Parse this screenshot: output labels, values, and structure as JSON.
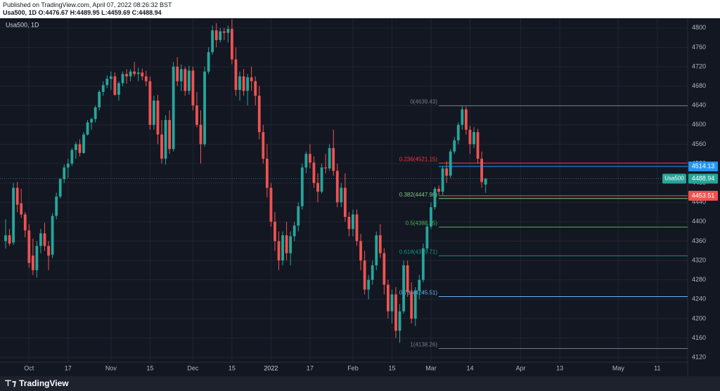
{
  "header": {
    "published": "Published on TradingView.com, April 07, 2022 08:26:32 BST",
    "ohlc": "Usa500, 1D O:4476.67 H:4489.95 L:4459.69 C:4488.94"
  },
  "brand": {
    "logo_icon": "tradingview-logo-icon",
    "name": "TradingView"
  },
  "colors": {
    "background": "#131722",
    "up": "#26a69a",
    "down": "#ef5350",
    "grid": "#1f2533",
    "axis_text": "#b2b5be"
  },
  "chart_data": {
    "type": "candlestick",
    "symbol_label": "Usa500, 1D",
    "y_ticks": [
      4120,
      4160,
      4200,
      4240,
      4280,
      4320,
      4360,
      4400,
      4440,
      4480,
      4520,
      4560,
      4600,
      4640,
      4680,
      4720,
      4760,
      4800
    ],
    "ylim": [
      4110,
      4820
    ],
    "x_ticks": [
      "Oct",
      "17",
      "Nov",
      "15",
      "Dec",
      "15",
      "2022",
      "17",
      "Feb",
      "15",
      "Mar",
      "14",
      "Apr",
      "13",
      "May",
      "11"
    ],
    "x_tick_bar_index": [
      6,
      16,
      27,
      37,
      48,
      58,
      68,
      78,
      89,
      99,
      109,
      119,
      132,
      142,
      157,
      167
    ],
    "last_price": {
      "label": "Usa500",
      "value": "4488.94",
      "color": "#26a69a"
    },
    "price_labels": [
      {
        "value": "4514.13",
        "color": "#2196f3",
        "price": 4514.13
      },
      {
        "value": "4453.51",
        "color": "#ef5350",
        "price": 4453.51
      }
    ],
    "fibonacci": {
      "start_bar": 111,
      "levels": [
        {
          "label": "0(4639.43)",
          "price": 4639.43,
          "color": "#787b86"
        },
        {
          "label": "0.236(4521.15)",
          "price": 4521.15,
          "color": "#f23645"
        },
        {
          "label": "0.382(4447.98)",
          "price": 4447.98,
          "color": "#81c784"
        },
        {
          "label": "0.5(4388.85)",
          "price": 4388.85,
          "color": "#4caf50"
        },
        {
          "label": "0.618(4329.71)",
          "price": 4329.71,
          "color": "#089981"
        },
        {
          "label": "0.786(4245.51)",
          "price": 4245.51,
          "color": "#64b5f6"
        },
        {
          "label": "1(4138.26)",
          "price": 4138.26,
          "color": "#787b86"
        }
      ]
    },
    "candles": [
      [
        4360,
        4405,
        4345,
        4372
      ],
      [
        4372,
        4385,
        4350,
        4355
      ],
      [
        4357,
        4480,
        4352,
        4470
      ],
      [
        4470,
        4482,
        4420,
        4435
      ],
      [
        4438,
        4468,
        4408,
        4415
      ],
      [
        4415,
        4420,
        4368,
        4382
      ],
      [
        4382,
        4395,
        4305,
        4315
      ],
      [
        4330,
        4365,
        4290,
        4300
      ],
      [
        4300,
        4360,
        4285,
        4350
      ],
      [
        4350,
        4385,
        4335,
        4376
      ],
      [
        4376,
        4398,
        4340,
        4350
      ],
      [
        4350,
        4360,
        4300,
        4330
      ],
      [
        4332,
        4418,
        4325,
        4412
      ],
      [
        4412,
        4460,
        4405,
        4452
      ],
      [
        4452,
        4490,
        4448,
        4488
      ],
      [
        4488,
        4518,
        4480,
        4512
      ],
      [
        4512,
        4530,
        4490,
        4520
      ],
      [
        4520,
        4552,
        4515,
        4548
      ],
      [
        4548,
        4565,
        4530,
        4560
      ],
      [
        4560,
        4570,
        4535,
        4542
      ],
      [
        4542,
        4585,
        4540,
        4580
      ],
      [
        4580,
        4610,
        4578,
        4605
      ],
      [
        4605,
        4615,
        4590,
        4612
      ],
      [
        4612,
        4640,
        4605,
        4636
      ],
      [
        4636,
        4672,
        4630,
        4668
      ],
      [
        4668,
        4690,
        4660,
        4682
      ],
      [
        4682,
        4702,
        4676,
        4695
      ],
      [
        4695,
        4710,
        4672,
        4700
      ],
      [
        4700,
        4708,
        4660,
        4662
      ],
      [
        4662,
        4690,
        4650,
        4686
      ],
      [
        4686,
        4710,
        4680,
        4705
      ],
      [
        4705,
        4715,
        4685,
        4700
      ],
      [
        4700,
        4715,
        4690,
        4710
      ],
      [
        4710,
        4730,
        4700,
        4705
      ],
      [
        4705,
        4718,
        4690,
        4708
      ],
      [
        4708,
        4716,
        4692,
        4700
      ],
      [
        4700,
        4712,
        4680,
        4690
      ],
      [
        4690,
        4700,
        4590,
        4600
      ],
      [
        4600,
        4660,
        4590,
        4650
      ],
      [
        4650,
        4662,
        4560,
        4580
      ],
      [
        4580,
        4610,
        4520,
        4530
      ],
      [
        4530,
        4620,
        4518,
        4610
      ],
      [
        4610,
        4630,
        4540,
        4550
      ],
      [
        4550,
        4730,
        4545,
        4720
      ],
      [
        4720,
        4740,
        4680,
        4690
      ],
      [
        4690,
        4725,
        4670,
        4715
      ],
      [
        4715,
        4720,
        4660,
        4670
      ],
      [
        4670,
        4722,
        4662,
        4712
      ],
      [
        4712,
        4720,
        4630,
        4640
      ],
      [
        4640,
        4668,
        4595,
        4600
      ],
      [
        4600,
        4630,
        4520,
        4560
      ],
      [
        4560,
        4720,
        4555,
        4710
      ],
      [
        4710,
        4760,
        4705,
        4750
      ],
      [
        4750,
        4805,
        4745,
        4795
      ],
      [
        4795,
        4810,
        4760,
        4775
      ],
      [
        4775,
        4800,
        4770,
        4793
      ],
      [
        4793,
        4800,
        4775,
        4790
      ],
      [
        4790,
        4805,
        4770,
        4798
      ],
      [
        4798,
        4818,
        4725,
        4735
      ],
      [
        4735,
        4760,
        4660,
        4672
      ],
      [
        4672,
        4710,
        4650,
        4700
      ],
      [
        4700,
        4715,
        4660,
        4670
      ],
      [
        4670,
        4705,
        4640,
        4698
      ],
      [
        4698,
        4720,
        4670,
        4690
      ],
      [
        4690,
        4700,
        4640,
        4660
      ],
      [
        4660,
        4680,
        4570,
        4585
      ],
      [
        4585,
        4600,
        4520,
        4530
      ],
      [
        4530,
        4560,
        4450,
        4470
      ],
      [
        4470,
        4480,
        4390,
        4400
      ],
      [
        4400,
        4420,
        4340,
        4360
      ],
      [
        4360,
        4380,
        4300,
        4320
      ],
      [
        4320,
        4380,
        4310,
        4372
      ],
      [
        4372,
        4400,
        4320,
        4335
      ],
      [
        4335,
        4380,
        4310,
        4370
      ],
      [
        4370,
        4400,
        4360,
        4392
      ],
      [
        4392,
        4440,
        4380,
        4432
      ],
      [
        4432,
        4520,
        4425,
        4512
      ],
      [
        4512,
        4545,
        4500,
        4540
      ],
      [
        4540,
        4560,
        4510,
        4522
      ],
      [
        4522,
        4535,
        4470,
        4480
      ],
      [
        4480,
        4500,
        4440,
        4462
      ],
      [
        4462,
        4520,
        4458,
        4512
      ],
      [
        4512,
        4540,
        4500,
        4510
      ],
      [
        4510,
        4560,
        4505,
        4552
      ],
      [
        4552,
        4590,
        4495,
        4505
      ],
      [
        4505,
        4520,
        4430,
        4440
      ],
      [
        4440,
        4480,
        4430,
        4470
      ],
      [
        4470,
        4500,
        4400,
        4410
      ],
      [
        4410,
        4420,
        4370,
        4385
      ],
      [
        4385,
        4425,
        4370,
        4415
      ],
      [
        4415,
        4425,
        4350,
        4360
      ],
      [
        4360,
        4375,
        4300,
        4320
      ],
      [
        4320,
        4340,
        4250,
        4260
      ],
      [
        4260,
        4290,
        4240,
        4280
      ],
      [
        4280,
        4320,
        4270,
        4310
      ],
      [
        4310,
        4380,
        4300,
        4372
      ],
      [
        4372,
        4395,
        4325,
        4335
      ],
      [
        4335,
        4345,
        4250,
        4270
      ],
      [
        4270,
        4280,
        4200,
        4215
      ],
      [
        4215,
        4260,
        4190,
        4250
      ],
      [
        4250,
        4265,
        4160,
        4175
      ],
      [
        4175,
        4230,
        4150,
        4215
      ],
      [
        4215,
        4320,
        4210,
        4310
      ],
      [
        4310,
        4320,
        4245,
        4255
      ],
      [
        4255,
        4275,
        4190,
        4200
      ],
      [
        4200,
        4265,
        4185,
        4258
      ],
      [
        4258,
        4290,
        4240,
        4280
      ],
      [
        4280,
        4355,
        4275,
        4345
      ],
      [
        4345,
        4395,
        4340,
        4390
      ],
      [
        4390,
        4440,
        4385,
        4430
      ],
      [
        4430,
        4472,
        4425,
        4468
      ],
      [
        4468,
        4475,
        4455,
        4462
      ],
      [
        4462,
        4515,
        4455,
        4510
      ],
      [
        4510,
        4525,
        4480,
        4495
      ],
      [
        4495,
        4550,
        4490,
        4545
      ],
      [
        4545,
        4575,
        4540,
        4568
      ],
      [
        4568,
        4605,
        4560,
        4600
      ],
      [
        4600,
        4640,
        4590,
        4632
      ],
      [
        4632,
        4638,
        4580,
        4590
      ],
      [
        4590,
        4598,
        4540,
        4560
      ],
      [
        4560,
        4595,
        4552,
        4585
      ],
      [
        4585,
        4592,
        4520,
        4530
      ],
      [
        4530,
        4545,
        4470,
        4482
      ],
      [
        4476.67,
        4489.95,
        4459.69,
        4488.94
      ]
    ]
  }
}
